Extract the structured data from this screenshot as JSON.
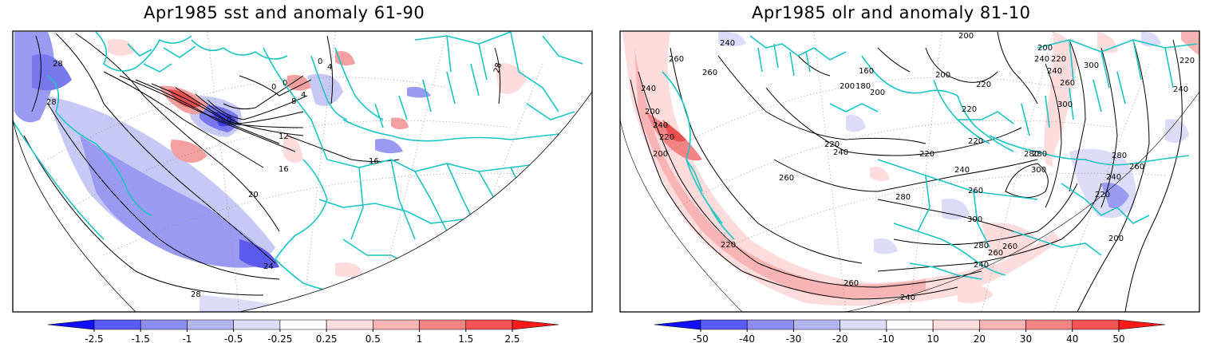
{
  "panels": [
    {
      "title": "Apr1985 sst and anomaly 61-90",
      "contour_labels": [
        "28",
        "28",
        "4",
        "0",
        "0",
        "4",
        "8",
        "0",
        "12",
        "16",
        "20",
        "24",
        "28",
        "16",
        "28",
        "0"
      ],
      "colorbar": {
        "ticks": [
          "-2.5",
          "-1.5",
          "-1",
          "-0.5",
          "-0.25",
          "0.25",
          "0.5",
          "1",
          "1.5",
          "2.5"
        ],
        "colors": [
          "#1010ff",
          "#5a5aff",
          "#8c8cf4",
          "#b4b4f0",
          "#dcdcf8",
          "#ffffff",
          "#fcdcdc",
          "#f8b4b4",
          "#f48484",
          "#f45454",
          "#ff1a1a"
        ]
      }
    },
    {
      "title": "Apr1985 olr and anomaly 81-10",
      "contour_labels": [
        "240",
        "260",
        "240",
        "200",
        "240",
        "220",
        "200",
        "260",
        "160",
        "200",
        "200",
        "180",
        "200",
        "240",
        "200",
        "220",
        "220",
        "240",
        "260",
        "280",
        "300",
        "220",
        "240",
        "260",
        "280",
        "300",
        "280",
        "260",
        "240",
        "220",
        "220",
        "240",
        "260",
        "200",
        "220",
        "280",
        "300",
        "240",
        "220",
        "280",
        "260",
        "220",
        "240",
        "260",
        "200",
        "300",
        "240",
        "220",
        "260"
      ],
      "colorbar": {
        "ticks": [
          "-50",
          "-40",
          "-30",
          "-20",
          "-10",
          "10",
          "20",
          "30",
          "40",
          "50"
        ],
        "colors": [
          "#1010ff",
          "#5a5aff",
          "#8c8cf4",
          "#b4b4f0",
          "#dcdcf8",
          "#ffffff",
          "#fcdcdc",
          "#f8b4b4",
          "#f48484",
          "#f45454",
          "#ff1a1a"
        ]
      }
    }
  ]
}
